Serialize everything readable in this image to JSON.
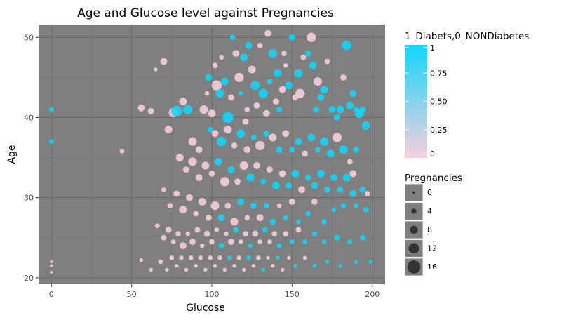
{
  "chart_data": {
    "type": "scatter",
    "title": "Age and Glucose level against Pregnancies",
    "xlabel": "Glucose",
    "ylabel": "Age",
    "xlim": [
      -8,
      208
    ],
    "ylim": [
      19.2,
      51.6
    ],
    "xticks": [
      0,
      50,
      100,
      150,
      200
    ],
    "yticks": [
      20,
      30,
      40,
      50
    ],
    "grid": true,
    "background": "#7f7f7f",
    "grid_major_color": "#6b6b6b",
    "grid_minor_color": "#747474",
    "color_scale": {
      "title": "1_Diabets,0_NONDiabetes",
      "low_color": "#f8d0dc",
      "high_color": "#12d6fa",
      "ticks": [
        1,
        0.75,
        0.5,
        0.25,
        0
      ],
      "tick_labels": [
        "1",
        "0.75",
        "0.50",
        "0.25",
        "0"
      ]
    },
    "size_legend": {
      "title": "Pregnancies",
      "values": [
        0,
        4,
        8,
        12,
        16
      ],
      "labels": [
        "0",
        "4",
        "8",
        "12",
        "16"
      ]
    },
    "points": [
      [
        0,
        41,
        1,
        2
      ],
      [
        0,
        37,
        1,
        2
      ],
      [
        0,
        22,
        0,
        0
      ],
      [
        0,
        21.5,
        0,
        0
      ],
      [
        0,
        20.7,
        0,
        0
      ],
      [
        44,
        35.8,
        0,
        2
      ],
      [
        56,
        41.2,
        0,
        5
      ],
      [
        62,
        40.8,
        0,
        4
      ],
      [
        65,
        46,
        0,
        1
      ],
      [
        70,
        47,
        0,
        5
      ],
      [
        73,
        38.5,
        0,
        6
      ],
      [
        76,
        40.6,
        0,
        8
      ],
      [
        78,
        40.8,
        1,
        10
      ],
      [
        82,
        42,
        0,
        6
      ],
      [
        85,
        41,
        1,
        8
      ],
      [
        88,
        37,
        0,
        7
      ],
      [
        92,
        36,
        0,
        5
      ],
      [
        95,
        41,
        0,
        7
      ],
      [
        97,
        43,
        0,
        2
      ],
      [
        98,
        45,
        1,
        5
      ],
      [
        99,
        38.5,
        1,
        3
      ],
      [
        100,
        40.5,
        0,
        6
      ],
      [
        102,
        46.5,
        0,
        3
      ],
      [
        103,
        44,
        0,
        9
      ],
      [
        105,
        43,
        1,
        7
      ],
      [
        106,
        47.5,
        0,
        2
      ],
      [
        108,
        44.5,
        1,
        6
      ],
      [
        110,
        40,
        1,
        10
      ],
      [
        112,
        42.5,
        0,
        4
      ],
      [
        113,
        50,
        1,
        3
      ],
      [
        115,
        48,
        0,
        5
      ],
      [
        117,
        45,
        0,
        8
      ],
      [
        118,
        43,
        1,
        2
      ],
      [
        120,
        47.5,
        1,
        6
      ],
      [
        121,
        39.5,
        0,
        4
      ],
      [
        122,
        41,
        0,
        3
      ],
      [
        123,
        49,
        1,
        5
      ],
      [
        125,
        46,
        0,
        6
      ],
      [
        127,
        44,
        1,
        8
      ],
      [
        128,
        41.5,
        0,
        4
      ],
      [
        130,
        49,
        0,
        3
      ],
      [
        132,
        43,
        1,
        8
      ],
      [
        134,
        40.5,
        0,
        5
      ],
      [
        135,
        50.5,
        0,
        5
      ],
      [
        136,
        44.5,
        1,
        3
      ],
      [
        138,
        48,
        1,
        7
      ],
      [
        140,
        42,
        0,
        4
      ],
      [
        141,
        45.5,
        1,
        6
      ],
      [
        142,
        41,
        1,
        3
      ],
      [
        144,
        43.5,
        0,
        5
      ],
      [
        145,
        48,
        0,
        3
      ],
      [
        146,
        46.5,
        0,
        2
      ],
      [
        148,
        44,
        1,
        6
      ],
      [
        150,
        50,
        1,
        4
      ],
      [
        152,
        42.5,
        0,
        4
      ],
      [
        154,
        45.5,
        1,
        7
      ],
      [
        155,
        43,
        0,
        8
      ],
      [
        157,
        47.5,
        0,
        3
      ],
      [
        160,
        48,
        1,
        4
      ],
      [
        162,
        50,
        0,
        8
      ],
      [
        163,
        46.5,
        1,
        6
      ],
      [
        165,
        41,
        1,
        4
      ],
      [
        166,
        44.5,
        0,
        7
      ],
      [
        168,
        42.5,
        1,
        5
      ],
      [
        170,
        43.5,
        1,
        6
      ],
      [
        172,
        47,
        0,
        3
      ],
      [
        175,
        41,
        1,
        5
      ],
      [
        178,
        40,
        1,
        4
      ],
      [
        180,
        41,
        1,
        6
      ],
      [
        182,
        45,
        0,
        4
      ],
      [
        184,
        49,
        1,
        8
      ],
      [
        186,
        41.5,
        1,
        6
      ],
      [
        188,
        43,
        1,
        5
      ],
      [
        190,
        41,
        1,
        3
      ],
      [
        192,
        40.5,
        1,
        8
      ],
      [
        194,
        41,
        1,
        4
      ],
      [
        196,
        39,
        1,
        7
      ],
      [
        102,
        38,
        0,
        5
      ],
      [
        106,
        37,
        1,
        8
      ],
      [
        110,
        38.5,
        0,
        6
      ],
      [
        114,
        36.5,
        0,
        4
      ],
      [
        118,
        38,
        1,
        7
      ],
      [
        122,
        36,
        0,
        5
      ],
      [
        126,
        37.5,
        1,
        3
      ],
      [
        130,
        36.5,
        0,
        8
      ],
      [
        134,
        38,
        1,
        4
      ],
      [
        138,
        37.5,
        0,
        6
      ],
      [
        142,
        36,
        1,
        4
      ],
      [
        146,
        38,
        0,
        5
      ],
      [
        150,
        36,
        1,
        3
      ],
      [
        154,
        37,
        1,
        5
      ],
      [
        158,
        35.5,
        0,
        4
      ],
      [
        162,
        37.5,
        1,
        6
      ],
      [
        166,
        36,
        1,
        3
      ],
      [
        170,
        37,
        1,
        7
      ],
      [
        174,
        35.5,
        1,
        6
      ],
      [
        178,
        37.5,
        0,
        8
      ],
      [
        182,
        36,
        1,
        7
      ],
      [
        186,
        34.5,
        0,
        3
      ],
      [
        190,
        36,
        1,
        4
      ],
      [
        188,
        33,
        0,
        5
      ],
      [
        80,
        35,
        0,
        6
      ],
      [
        84,
        33.5,
        0,
        4
      ],
      [
        88,
        34.5,
        0,
        7
      ],
      [
        92,
        32.5,
        0,
        5
      ],
      [
        96,
        34,
        0,
        6
      ],
      [
        100,
        33,
        0,
        4
      ],
      [
        104,
        34.5,
        1,
        6
      ],
      [
        108,
        32,
        0,
        8
      ],
      [
        112,
        33.5,
        1,
        5
      ],
      [
        116,
        32,
        0,
        4
      ],
      [
        120,
        34,
        0,
        7
      ],
      [
        124,
        32.5,
        1,
        6
      ],
      [
        128,
        34,
        0,
        5
      ],
      [
        132,
        32,
        1,
        3
      ],
      [
        136,
        33.5,
        0,
        4
      ],
      [
        140,
        31.5,
        1,
        6
      ],
      [
        144,
        33,
        0,
        5
      ],
      [
        148,
        31.5,
        1,
        4
      ],
      [
        152,
        33,
        1,
        6
      ],
      [
        156,
        31,
        0,
        5
      ],
      [
        160,
        32.5,
        1,
        4
      ],
      [
        164,
        31.5,
        1,
        5
      ],
      [
        168,
        33,
        1,
        6
      ],
      [
        172,
        31,
        1,
        4
      ],
      [
        176,
        32.5,
        1,
        5
      ],
      [
        180,
        31,
        1,
        4
      ],
      [
        184,
        32.5,
        1,
        6
      ],
      [
        188,
        30.5,
        1,
        5
      ],
      [
        194,
        31,
        1,
        4
      ],
      [
        197,
        30.5,
        0,
        3
      ],
      [
        70,
        31,
        0,
        2
      ],
      [
        74,
        29,
        0,
        3
      ],
      [
        78,
        30.5,
        0,
        4
      ],
      [
        82,
        28.5,
        0,
        6
      ],
      [
        86,
        30,
        0,
        5
      ],
      [
        90,
        28,
        0,
        3
      ],
      [
        94,
        29.5,
        0,
        6
      ],
      [
        98,
        27.5,
        0,
        4
      ],
      [
        102,
        29,
        0,
        7
      ],
      [
        106,
        27.5,
        1,
        5
      ],
      [
        110,
        29,
        0,
        4
      ],
      [
        114,
        27,
        0,
        6
      ],
      [
        118,
        29.5,
        1,
        5
      ],
      [
        122,
        27.5,
        0,
        3
      ],
      [
        126,
        29,
        1,
        4
      ],
      [
        130,
        27.5,
        0,
        5
      ],
      [
        134,
        29,
        1,
        3
      ],
      [
        138,
        27,
        1,
        4
      ],
      [
        142,
        29,
        0,
        2
      ],
      [
        146,
        27.5,
        1,
        3
      ],
      [
        150,
        29.5,
        0,
        4
      ],
      [
        154,
        27,
        1,
        2
      ],
      [
        160,
        28,
        1,
        3
      ],
      [
        164,
        29.5,
        0,
        4
      ],
      [
        170,
        27,
        1,
        3
      ],
      [
        176,
        28.5,
        1,
        2
      ],
      [
        182,
        29,
        1,
        3
      ],
      [
        190,
        29,
        1,
        2
      ],
      [
        196,
        28.5,
        1,
        3
      ],
      [
        66,
        26.5,
        0,
        2
      ],
      [
        70,
        25,
        0,
        3
      ],
      [
        73,
        26,
        0,
        4
      ],
      [
        76,
        24.5,
        0,
        2
      ],
      [
        79,
        25.5,
        0,
        3
      ],
      [
        82,
        24,
        0,
        5
      ],
      [
        85,
        25.5,
        0,
        2
      ],
      [
        88,
        24.5,
        0,
        4
      ],
      [
        91,
        26,
        0,
        3
      ],
      [
        94,
        24,
        0,
        2
      ],
      [
        97,
        25.5,
        0,
        4
      ],
      [
        100,
        24.5,
        0,
        3
      ],
      [
        103,
        26,
        0,
        2
      ],
      [
        106,
        24,
        1,
        3
      ],
      [
        109,
        25.5,
        0,
        2
      ],
      [
        112,
        24.5,
        0,
        4
      ],
      [
        115,
        26,
        1,
        3
      ],
      [
        118,
        24.5,
        0,
        2
      ],
      [
        121,
        25.5,
        0,
        3
      ],
      [
        124,
        24,
        1,
        2
      ],
      [
        127,
        25.5,
        0,
        4
      ],
      [
        130,
        24.5,
        0,
        2
      ],
      [
        133,
        26,
        1,
        3
      ],
      [
        136,
        24.5,
        0,
        2
      ],
      [
        139,
        25.5,
        0,
        3
      ],
      [
        142,
        24,
        1,
        2
      ],
      [
        146,
        25.5,
        0,
        3
      ],
      [
        150,
        24.5,
        1,
        2
      ],
      [
        154,
        26,
        0,
        3
      ],
      [
        158,
        24.5,
        1,
        2
      ],
      [
        164,
        25.5,
        1,
        3
      ],
      [
        170,
        24.5,
        1,
        2
      ],
      [
        178,
        25,
        1,
        3
      ],
      [
        186,
        24.5,
        1,
        2
      ],
      [
        194,
        25,
        1,
        3
      ],
      [
        56,
        22.2,
        0,
        1
      ],
      [
        62,
        21,
        0,
        1
      ],
      [
        68,
        22,
        0,
        2
      ],
      [
        72,
        21,
        0,
        1
      ],
      [
        75,
        22.5,
        0,
        2
      ],
      [
        78,
        21.5,
        0,
        1
      ],
      [
        81,
        22.5,
        0,
        2
      ],
      [
        84,
        21,
        0,
        1
      ],
      [
        87,
        22.5,
        0,
        2
      ],
      [
        90,
        21.5,
        0,
        1
      ],
      [
        93,
        22.5,
        0,
        2
      ],
      [
        96,
        21,
        0,
        1
      ],
      [
        99,
        22.5,
        0,
        2
      ],
      [
        102,
        21.5,
        0,
        1
      ],
      [
        105,
        22.5,
        0,
        2
      ],
      [
        108,
        21,
        0,
        1
      ],
      [
        111,
        22.5,
        1,
        2
      ],
      [
        114,
        21.5,
        0,
        1
      ],
      [
        117,
        22.5,
        0,
        2
      ],
      [
        120,
        21,
        0,
        1
      ],
      [
        123,
        22.5,
        1,
        2
      ],
      [
        126,
        21.5,
        0,
        1
      ],
      [
        129,
        22.5,
        0,
        2
      ],
      [
        132,
        21,
        1,
        1
      ],
      [
        135,
        22.5,
        0,
        1
      ],
      [
        138,
        21.5,
        0,
        1
      ],
      [
        141,
        22.5,
        1,
        1
      ],
      [
        144,
        21,
        0,
        1
      ],
      [
        148,
        22.5,
        0,
        1
      ],
      [
        152,
        21.5,
        1,
        1
      ],
      [
        158,
        22.5,
        0,
        1
      ],
      [
        164,
        21.5,
        1,
        1
      ],
      [
        172,
        22,
        1,
        1
      ],
      [
        180,
        21.5,
        1,
        1
      ],
      [
        190,
        22,
        1,
        1
      ],
      [
        199,
        22,
        1,
        1
      ]
    ]
  }
}
